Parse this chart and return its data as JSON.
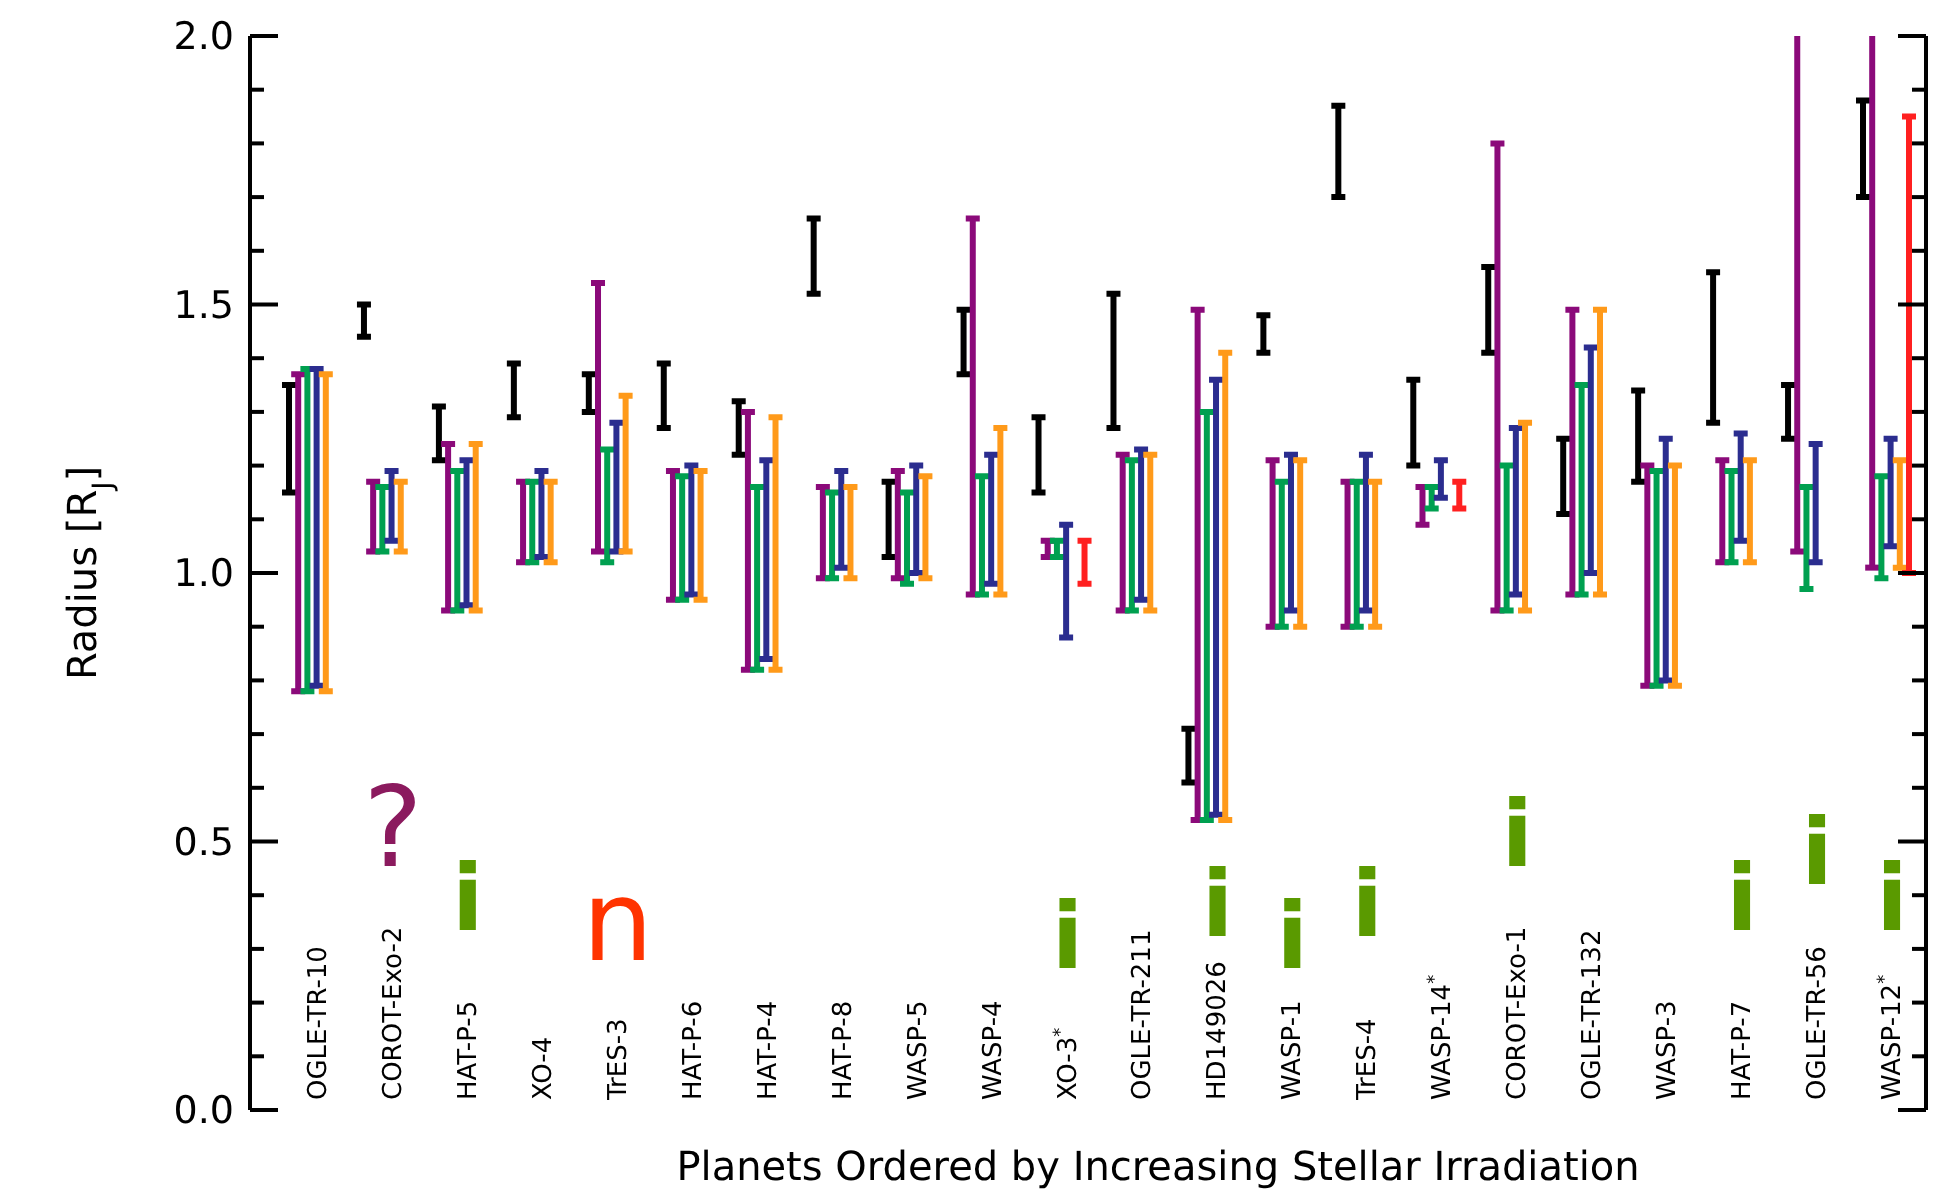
{
  "chart_data": {
    "type": "bar",
    "xlabel": "Planets Ordered by Increasing Stellar Irradiation",
    "ylabel": "Radius [R$_{J}$]",
    "categories": [
      "OGLE-TR-10",
      "COROT-Exo-2",
      "HAT-P-5",
      "XO-4",
      "TrES-3",
      "HAT-P-6",
      "HAT-P-4",
      "HAT-P-8",
      "WASP-5",
      "WASP-4",
      "XO-3$^{*}$",
      "OGLE-TR-211",
      "HD149026",
      "WASP-1",
      "TrES-4",
      "WASP-14$^{*}$",
      "COROT-Exo-1",
      "OGLE-TR-132",
      "WASP-3",
      "HAT-P-7",
      "OGLE-TR-56",
      "WASP-12$^{*}$"
    ],
    "series": [
      {
        "color": "#000000",
        "base": [
          1.15,
          1.44,
          1.21,
          1.29,
          1.3,
          1.27,
          1.22,
          1.52,
          1.03,
          1.37,
          1.15,
          1.27,
          0.61,
          1.41,
          1.7,
          1.2,
          1.41,
          1.11,
          1.17,
          1.28,
          1.25,
          1.7
        ],
        "values": [
          0.2,
          0.06,
          0.1,
          0.1,
          0.07,
          0.12,
          0.1,
          0.14,
          0.14,
          0.12,
          0.14,
          0.25,
          0.1,
          0.07,
          0.17,
          0.16,
          0.16,
          0.14,
          0.17,
          0.28,
          0.1,
          0.18
        ]
      },
      {
        "color": "#8b0a7a",
        "base": [
          0.78,
          1.04,
          0.93,
          1.02,
          1.04,
          0.95,
          0.82,
          0.99,
          0.99,
          0.96,
          1.03,
          0.93,
          0.54,
          0.9,
          0.9,
          1.09,
          0.93,
          0.96,
          0.79,
          1.02,
          1.04,
          1.01
        ],
        "values": [
          0.59,
          0.13,
          0.31,
          0.15,
          0.5,
          0.24,
          0.48,
          0.17,
          0.2,
          0.7,
          0.03,
          0.29,
          0.95,
          0.31,
          0.27,
          0.07,
          0.87,
          0.53,
          0.41,
          0.19,
          0.96,
          0.99
        ]
      },
      {
        "color": "#00a050",
        "base": [
          0.78,
          1.04,
          0.93,
          1.02,
          1.02,
          0.95,
          0.82,
          0.99,
          0.98,
          0.96,
          1.03,
          0.93,
          0.54,
          0.9,
          0.9,
          1.12,
          0.93,
          0.96,
          0.79,
          1.02,
          0.97,
          0.99
        ],
        "values": [
          0.6,
          0.12,
          0.26,
          0.15,
          0.21,
          0.23,
          0.34,
          0.16,
          0.17,
          0.22,
          0.03,
          0.28,
          0.76,
          0.27,
          0.27,
          0.04,
          0.27,
          0.39,
          0.4,
          0.17,
          0.19,
          0.19
        ]
      },
      {
        "color": "#2b2d8f",
        "base": [
          0.79,
          1.06,
          0.94,
          1.03,
          1.04,
          0.96,
          0.84,
          1.01,
          1.0,
          0.98,
          0.88,
          0.95,
          0.55,
          0.93,
          0.93,
          1.14,
          0.96,
          1.0,
          0.8,
          1.06,
          1.02,
          1.05
        ],
        "values": [
          0.59,
          0.13,
          0.27,
          0.16,
          0.24,
          0.24,
          0.37,
          0.18,
          0.2,
          0.24,
          0.21,
          0.28,
          0.81,
          0.29,
          0.29,
          0.07,
          0.31,
          0.42,
          0.45,
          0.2,
          0.22,
          0.2
        ]
      },
      {
        "color": "#ff9a1a",
        "base": [
          0.78,
          1.04,
          0.93,
          1.02,
          1.04,
          0.95,
          0.82,
          0.99,
          0.99,
          0.96,
          null,
          0.93,
          0.54,
          0.9,
          0.9,
          null,
          0.93,
          0.96,
          0.79,
          1.02,
          null,
          1.01
        ],
        "values": [
          0.59,
          0.13,
          0.31,
          0.15,
          0.29,
          0.24,
          0.47,
          0.17,
          0.19,
          0.31,
          null,
          0.29,
          0.87,
          0.31,
          0.27,
          null,
          0.35,
          0.53,
          0.41,
          0.19,
          null,
          0.2
        ]
      },
      {
        "color": "#ff2020",
        "base": [
          null,
          null,
          null,
          null,
          null,
          null,
          null,
          null,
          null,
          null,
          0.98,
          null,
          null,
          null,
          null,
          1.12,
          null,
          null,
          null,
          null,
          null,
          1.0
        ],
        "values": [
          null,
          null,
          null,
          null,
          null,
          null,
          null,
          null,
          null,
          null,
          0.08,
          null,
          null,
          null,
          null,
          0.05,
          null,
          null,
          null,
          null,
          null,
          0.85
        ]
      }
    ],
    "ylim": [
      0,
      2
    ],
    "yticks": [
      {
        "value": 0,
        "label": "0.0"
      },
      {
        "value": 0.1,
        "label": null
      },
      {
        "value": 0.2,
        "label": null
      },
      {
        "value": 0.3,
        "label": null
      },
      {
        "value": 0.4,
        "label": null
      },
      {
        "value": 0.5,
        "label": "0.5"
      },
      {
        "value": 0.6,
        "label": null
      },
      {
        "value": 0.7,
        "label": null
      },
      {
        "value": 0.8,
        "label": null
      },
      {
        "value": 0.9,
        "label": null
      },
      {
        "value": 1,
        "label": "1.0"
      },
      {
        "value": 1.1,
        "label": null
      },
      {
        "value": 1.2,
        "label": null
      },
      {
        "value": 1.3,
        "label": null
      },
      {
        "value": 1.4,
        "label": null
      },
      {
        "value": 1.5,
        "label": "1.5"
      },
      {
        "value": 1.6,
        "label": null
      },
      {
        "value": 1.7,
        "label": null
      },
      {
        "value": 1.8,
        "label": null
      },
      {
        "value": 1.9,
        "label": null
      },
      {
        "value": 2,
        "label": "2.0"
      }
    ],
    "annotations": [
      "?",
      "n",
      "i",
      "i",
      "i",
      "i",
      "i",
      "i",
      "i",
      "i",
      "i"
    ],
    "grid": false
  }
}
